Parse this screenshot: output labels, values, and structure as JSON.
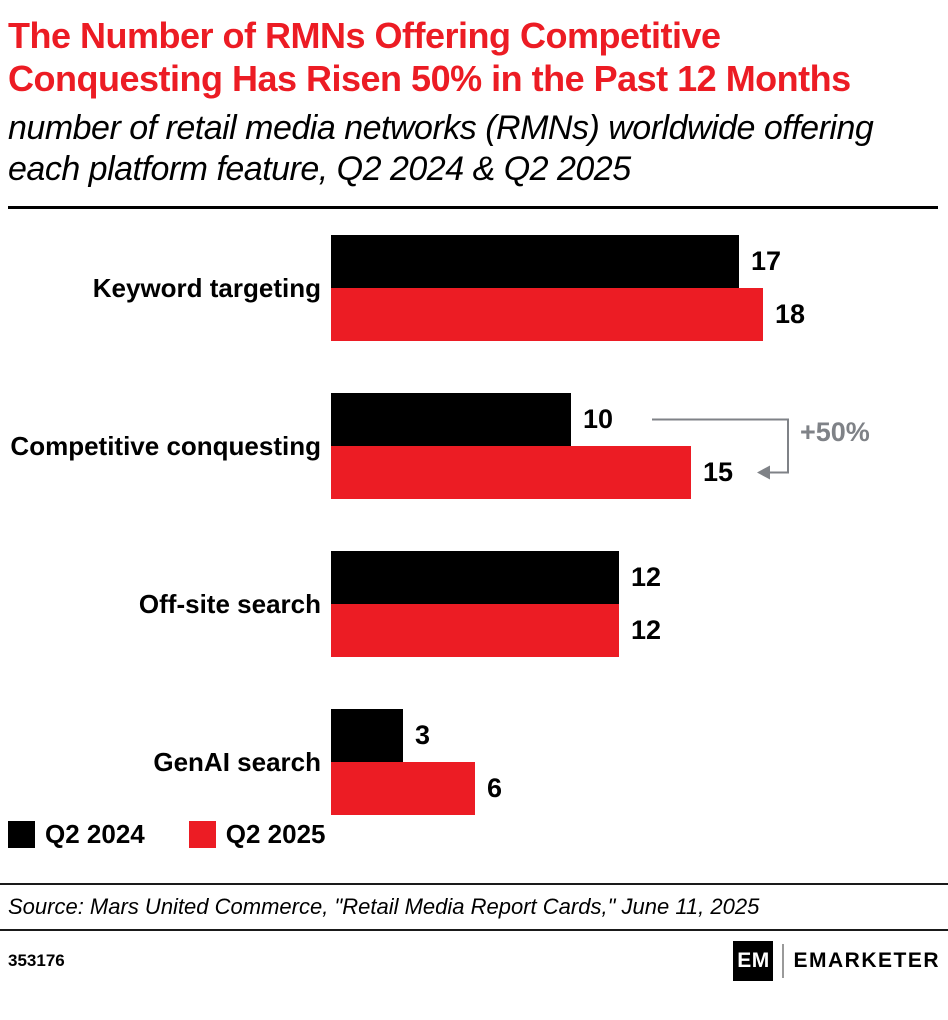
{
  "title": "The Number of RMNs Offering Competitive Conquesting Has Risen 50% in the Past 12 Months",
  "subtitle": "number of retail media networks (RMNs) worldwide offering each platform feature, Q2 2024 & Q2 2025",
  "colors": {
    "title_red": "#EC1C24",
    "series_2024": "#000000",
    "series_2025": "#EC1C24",
    "annotation_gray": "#7f8287"
  },
  "chart_data": {
    "type": "bar",
    "orientation": "horizontal",
    "categories": [
      "Keyword targeting",
      "Competitive conquesting",
      "Off-site search",
      "GenAI search"
    ],
    "series": [
      {
        "name": "Q2 2024",
        "color": "#000000",
        "values": [
          17,
          10,
          12,
          3
        ]
      },
      {
        "name": "Q2 2025",
        "color": "#EC1C24",
        "values": [
          18,
          15,
          12,
          6
        ]
      }
    ],
    "xlim": [
      0,
      18
    ],
    "grid": false,
    "legend_position": "bottom-left",
    "annotation": {
      "text": "+50%",
      "category": "Competitive conquesting",
      "from_value": 10,
      "to_value": 15
    }
  },
  "legend": [
    {
      "label": "Q2 2024",
      "color": "#000000"
    },
    {
      "label": "Q2 2025",
      "color": "#EC1C24"
    }
  ],
  "source": "Source: Mars United Commerce, \"Retail Media Report Cards,\" June 11, 2025",
  "footer": {
    "chart_id": "353176",
    "logo_monogram": "EM",
    "brand": "EMARKETER"
  }
}
